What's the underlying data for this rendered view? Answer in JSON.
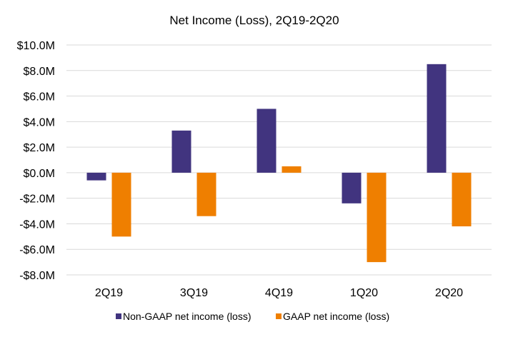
{
  "chart_data": {
    "type": "bar",
    "title": "Net Income (Loss), 2Q19-2Q20",
    "categories": [
      "2Q19",
      "3Q19",
      "4Q19",
      "1Q20",
      "2Q20"
    ],
    "series": [
      {
        "name": "Non-GAAP net income (loss)",
        "color": "#41347f",
        "values": [
          -0.6,
          3.3,
          5.0,
          -2.4,
          8.5
        ]
      },
      {
        "name": "GAAP net income (loss)",
        "color": "#ef7f00",
        "values": [
          -5.0,
          -3.4,
          0.5,
          -7.0,
          -4.2
        ]
      }
    ],
    "ylim": [
      -8,
      10
    ],
    "yticks": [
      10,
      8,
      6,
      4,
      2,
      0,
      -2,
      -4,
      -6,
      -8
    ],
    "ytick_labels": [
      "$10.0M",
      "$8.0M",
      "$6.0M",
      "$4.0M",
      "$2.0M",
      "$0.0M",
      "-$2.0M",
      "-$4.0M",
      "-$6.0M",
      "-$8.0M"
    ],
    "grid": true,
    "legend_position": "bottom"
  }
}
